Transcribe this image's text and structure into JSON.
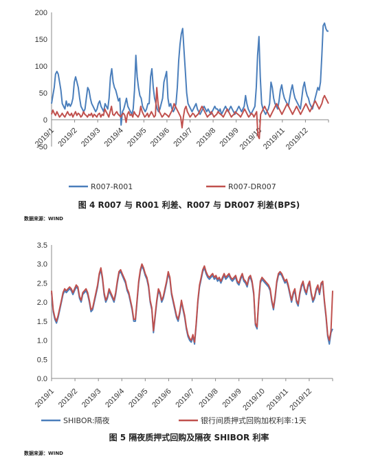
{
  "charts": [
    {
      "type": "line",
      "caption": "图 4 R007 与 R001 利差、R007 与 DR007 利差(BPS)",
      "source": "数据来源：WIND",
      "ylim": [
        -50,
        200
      ],
      "yticks": [
        "-50",
        "0",
        "50",
        "100",
        "150",
        "200"
      ],
      "xticks": [
        "2019/1",
        "2019/2",
        "2019/3",
        "2019/4",
        "2019/5",
        "2019/6",
        "2019/7",
        "2019/8",
        "2019/9",
        "2019/10",
        "2019/11",
        "2019/12"
      ],
      "series": [
        {
          "name": "R007-R001",
          "color": "#4a7ebb",
          "values": [
            30,
            45,
            60,
            85,
            90,
            85,
            70,
            55,
            30,
            25,
            20,
            35,
            25,
            30,
            25,
            30,
            40,
            70,
            80,
            70,
            60,
            40,
            25,
            20,
            15,
            20,
            40,
            60,
            55,
            40,
            30,
            25,
            20,
            15,
            20,
            30,
            35,
            25,
            20,
            15,
            30,
            25,
            20,
            40,
            80,
            95,
            70,
            60,
            55,
            45,
            35,
            40,
            -10,
            15,
            20,
            30,
            40,
            25,
            20,
            15,
            10,
            20,
            55,
            120,
            80,
            60,
            45,
            40,
            25,
            20,
            15,
            20,
            30,
            30,
            80,
            95,
            60,
            40,
            30,
            20,
            15,
            20,
            30,
            40,
            70,
            80,
            90,
            40,
            25,
            30,
            20,
            15,
            20,
            30,
            60,
            110,
            140,
            160,
            170,
            130,
            90,
            50,
            30,
            25,
            20,
            15,
            20,
            25,
            30,
            20,
            15,
            10,
            15,
            20,
            25,
            20,
            15,
            20,
            15,
            10,
            15,
            20,
            25,
            20,
            20,
            15,
            20,
            10,
            15,
            20,
            25,
            20,
            15,
            20,
            25,
            20,
            15,
            10,
            15,
            20,
            25,
            20,
            15,
            20,
            25,
            45,
            30,
            20,
            15,
            10,
            15,
            20,
            25,
            60,
            120,
            155,
            80,
            30,
            20,
            15,
            10,
            15,
            20,
            30,
            70,
            60,
            40,
            30,
            25,
            20,
            35,
            55,
            65,
            50,
            40,
            35,
            30,
            25,
            40,
            55,
            65,
            50,
            40,
            35,
            30,
            25,
            20,
            40,
            60,
            70,
            55,
            45,
            40,
            30,
            25,
            20,
            30,
            40,
            50,
            60,
            55,
            70,
            120,
            175,
            180,
            170,
            165,
            165
          ]
        },
        {
          "name": "R007-DR007",
          "color": "#c0504d",
          "values": [
            10,
            18,
            12,
            8,
            15,
            10,
            5,
            8,
            12,
            8,
            5,
            10,
            15,
            10,
            8,
            12,
            5,
            10,
            15,
            8,
            12,
            10,
            5,
            8,
            15,
            10,
            8,
            5,
            10,
            8,
            12,
            5,
            10,
            8,
            5,
            10,
            12,
            5,
            10,
            8,
            20,
            15,
            10,
            5,
            15,
            25,
            10,
            8,
            12,
            15,
            10,
            8,
            5,
            10,
            12,
            8,
            -5,
            10,
            15,
            8,
            10,
            5,
            15,
            10,
            8,
            5,
            10,
            25,
            15,
            10,
            5,
            8,
            12,
            5,
            10,
            15,
            10,
            5,
            8,
            60,
            30,
            15,
            10,
            5,
            8,
            12,
            10,
            8,
            5,
            10,
            15,
            20,
            30,
            25,
            20,
            15,
            10,
            5,
            -15,
            5,
            20,
            25,
            15,
            10,
            5,
            8,
            12,
            10,
            5,
            8,
            10,
            15,
            20,
            25,
            20,
            15,
            10,
            5,
            8,
            10,
            15,
            10,
            5,
            8,
            10,
            15,
            12,
            10,
            8,
            5,
            10,
            15,
            20,
            15,
            10,
            5,
            8,
            10,
            15,
            12,
            10,
            8,
            5,
            10,
            15,
            20,
            15,
            10,
            5,
            8,
            12,
            10,
            5,
            10,
            15,
            -30,
            -35,
            10,
            15,
            20,
            25,
            20,
            15,
            10,
            5,
            10,
            15,
            20,
            25,
            30,
            25,
            20,
            15,
            10,
            15,
            20,
            25,
            30,
            25,
            20,
            15,
            10,
            15,
            20,
            25,
            20,
            15,
            10,
            15,
            20,
            25,
            30,
            25,
            20,
            15,
            20,
            25,
            30,
            35,
            30,
            25,
            20,
            25,
            30,
            40,
            45,
            40,
            35,
            30
          ]
        }
      ]
    },
    {
      "type": "line",
      "caption": "图 5 隔夜质押式回购及隔夜 SHIBOR 利率",
      "source": "数据来源：WIND",
      "ylim": [
        0.0,
        3.5
      ],
      "yticks": [
        "0.0",
        "0.5",
        "1.0",
        "1.5",
        "2.0",
        "2.5",
        "3.0",
        "3.5"
      ],
      "xticks": [
        "2019/1",
        "2019/2",
        "2019/3",
        "2019/4",
        "2019/5",
        "2019/6",
        "2019/7",
        "2019/8",
        "2019/9",
        "2019/10",
        "2019/11",
        "2019/12"
      ],
      "series": [
        {
          "name": "SHIBOR:隔夜",
          "color": "#4a7ebb",
          "values": [
            2.25,
            1.75,
            1.55,
            1.45,
            1.6,
            1.8,
            2.0,
            2.2,
            2.3,
            2.25,
            2.3,
            2.35,
            2.3,
            2.2,
            2.3,
            2.4,
            2.35,
            2.1,
            2.0,
            2.2,
            2.25,
            2.3,
            2.2,
            2.0,
            1.75,
            1.8,
            2.0,
            2.2,
            2.4,
            2.7,
            2.85,
            2.6,
            2.2,
            2.0,
            2.1,
            2.3,
            2.2,
            2.1,
            2.0,
            2.2,
            2.5,
            2.75,
            2.8,
            2.7,
            2.6,
            2.5,
            2.3,
            2.2,
            2.0,
            1.8,
            1.5,
            1.5,
            2.0,
            2.5,
            2.8,
            2.95,
            2.85,
            2.7,
            2.6,
            2.4,
            2.0,
            1.8,
            1.2,
            1.6,
            2.0,
            2.3,
            2.2,
            2.0,
            2.1,
            2.3,
            2.5,
            2.75,
            2.6,
            2.2,
            2.0,
            1.8,
            1.6,
            1.5,
            1.7,
            2.0,
            1.8,
            1.6,
            1.3,
            1.1,
            1.0,
            0.95,
            1.1,
            0.9,
            1.4,
            2.0,
            2.4,
            2.6,
            2.8,
            2.9,
            2.75,
            2.65,
            2.6,
            2.65,
            2.7,
            2.6,
            2.65,
            2.55,
            2.6,
            2.5,
            2.6,
            2.7,
            2.6,
            2.65,
            2.7,
            2.6,
            2.55,
            2.6,
            2.65,
            2.5,
            2.45,
            2.6,
            2.7,
            2.55,
            2.5,
            2.4,
            2.6,
            2.65,
            2.5,
            2.2,
            1.4,
            1.3,
            2.0,
            2.5,
            2.6,
            2.55,
            2.5,
            2.45,
            2.4,
            2.3,
            2.0,
            1.8,
            2.1,
            2.5,
            2.7,
            2.75,
            2.7,
            2.6,
            2.5,
            2.55,
            2.4,
            2.2,
            2.0,
            2.2,
            2.3,
            2.0,
            1.9,
            2.2,
            2.4,
            2.5,
            2.3,
            2.2,
            2.4,
            2.5,
            2.2,
            2.0,
            2.1,
            2.3,
            2.4,
            2.2,
            2.45,
            2.5,
            2.0,
            1.6,
            1.1,
            0.9,
            1.2,
            1.3
          ]
        },
        {
          "name": "银行间质押式回购加权利率:1天",
          "color": "#c0504d",
          "values": [
            2.3,
            1.8,
            1.6,
            1.5,
            1.65,
            1.85,
            2.05,
            2.25,
            2.35,
            2.3,
            2.35,
            2.4,
            2.35,
            2.25,
            2.35,
            2.45,
            2.4,
            2.15,
            2.05,
            2.25,
            2.3,
            2.35,
            2.25,
            2.05,
            1.8,
            1.85,
            2.05,
            2.25,
            2.45,
            2.75,
            2.9,
            2.65,
            2.25,
            2.05,
            2.15,
            2.35,
            2.25,
            2.15,
            2.05,
            2.25,
            2.55,
            2.8,
            2.85,
            2.75,
            2.65,
            2.55,
            2.35,
            2.25,
            2.05,
            1.85,
            1.55,
            1.55,
            2.05,
            2.55,
            2.85,
            3.0,
            2.9,
            2.75,
            2.65,
            2.45,
            2.05,
            1.85,
            1.25,
            1.65,
            2.05,
            2.35,
            2.25,
            2.05,
            2.15,
            2.35,
            2.55,
            2.8,
            2.65,
            2.25,
            2.05,
            1.85,
            1.65,
            1.55,
            1.75,
            2.05,
            1.85,
            1.65,
            1.35,
            1.15,
            1.05,
            1.0,
            1.15,
            0.95,
            1.45,
            2.05,
            2.45,
            2.65,
            2.85,
            2.95,
            2.8,
            2.7,
            2.65,
            2.7,
            2.75,
            2.65,
            2.7,
            2.6,
            2.65,
            2.55,
            2.65,
            2.75,
            2.65,
            2.7,
            2.75,
            2.65,
            2.6,
            2.65,
            2.7,
            2.55,
            2.5,
            2.65,
            2.75,
            2.6,
            2.55,
            2.45,
            2.65,
            2.7,
            2.55,
            2.25,
            1.45,
            1.35,
            2.05,
            2.55,
            2.65,
            2.6,
            2.55,
            2.5,
            2.45,
            2.35,
            2.05,
            1.85,
            2.15,
            2.55,
            2.75,
            2.8,
            2.75,
            2.65,
            2.55,
            2.6,
            2.45,
            2.25,
            2.05,
            2.25,
            2.35,
            2.05,
            1.95,
            2.25,
            2.45,
            2.55,
            2.35,
            2.25,
            2.45,
            2.55,
            2.25,
            2.05,
            2.15,
            2.35,
            2.45,
            2.25,
            2.5,
            2.55,
            2.05,
            1.65,
            1.15,
            1.0,
            1.25,
            2.3
          ]
        }
      ]
    }
  ]
}
